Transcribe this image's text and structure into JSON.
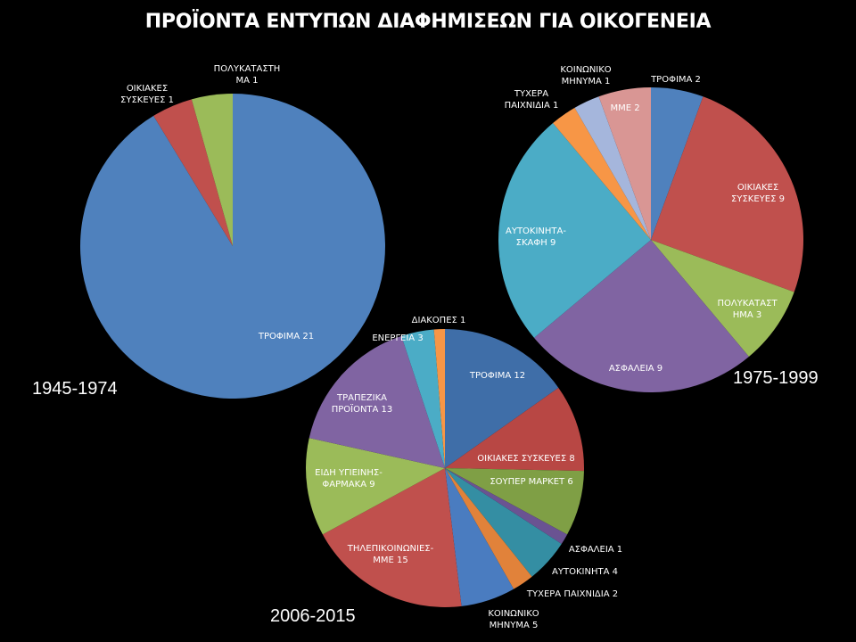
{
  "title": "ΠΡΟΪΟΝΤΑ ΕΝΤΥΠΩΝ ΔΙΑΦΗΜΙΣΕΩΝ ΓΙΑ ΟΙΚΟΓΕΝΕΙΑ",
  "chart_data": [
    {
      "type": "pie",
      "period": "1945-1974",
      "slices": [
        {
          "label": [
            "ΤΡΟΦΙΜΑ 21"
          ],
          "value": 21,
          "color": "#4f81bd"
        },
        {
          "label": [
            "ΟΙΚΙΑΚΕΣ",
            "ΣΥΣΚΕΥΕΣ 1"
          ],
          "value": 1,
          "color": "#c0504d"
        },
        {
          "label": [
            "ΠΟΛΥΚΑΤΑΣΤΗ",
            "ΜΑ 1"
          ],
          "value": 1,
          "color": "#9bbb59"
        }
      ]
    },
    {
      "type": "pie",
      "period": "1975-1999",
      "slices": [
        {
          "label": [
            "ΤΡΟΦΙΜΑ 2"
          ],
          "value": 2,
          "color": "#4f81bd"
        },
        {
          "label": [
            "ΟΙΚΙΑΚΕΣ",
            "ΣΥΣΚΕΥΕΣ 9"
          ],
          "value": 9,
          "color": "#c0504d"
        },
        {
          "label": [
            "ΠΟΛΥΚΑΤΑΣΤ",
            "ΗΜΑ 3"
          ],
          "value": 3,
          "color": "#9bbb59"
        },
        {
          "label": [
            "ΑΣΦΑΛΕΙΑ 9"
          ],
          "value": 9,
          "color": "#8064a2"
        },
        {
          "label": [
            "ΑΥΤΟΚΙΝΗΤΑ-",
            "ΣΚΑΦΗ 9"
          ],
          "value": 9,
          "color": "#4bacc6"
        },
        {
          "label": [
            "ΤΥΧΕΡΑ",
            "ΠΑΙΧΝΙΔΙΑ 1"
          ],
          "value": 1,
          "color": "#f79646"
        },
        {
          "label": [
            "ΚΟΙΝΩΝΙΚΟ",
            "ΜΗΝΥΜΑ 1"
          ],
          "value": 1,
          "color": "#a5b6dc"
        },
        {
          "label": [
            "ΜΜΕ 2"
          ],
          "value": 2,
          "color": "#d99694"
        }
      ]
    },
    {
      "type": "pie",
      "period": "2006-2015",
      "slices": [
        {
          "label": [
            "ΤΡΟΦΙΜΑ 12"
          ],
          "value": 12,
          "color": "#3f6ea8"
        },
        {
          "label": [
            "ΟΙΚΙΑΚΕΣ ΣΥΣΚΕΥΕΣ  8"
          ],
          "value": 8,
          "color": "#b84744"
        },
        {
          "label": [
            "ΣΟΥΠΕΡ ΜΑΡΚΕΤ 6"
          ],
          "value": 6,
          "color": "#7f9f45"
        },
        {
          "label": [
            "ΑΣΦΑΛΕΙΑ 1"
          ],
          "value": 1,
          "color": "#6a5392"
        },
        {
          "label": [
            "ΑΥΤΟΚΙΝΗΤΑ 4"
          ],
          "value": 4,
          "color": "#348ea3"
        },
        {
          "label": [
            "ΤΥΧΕΡΑ ΠΑΙΧΝΙΔΙΑ  2"
          ],
          "value": 2,
          "color": "#e1823a"
        },
        {
          "label": [
            "ΚΟΙΝΩΝΙΚΟ",
            "ΜΗΝΥΜΑ 5"
          ],
          "value": 5,
          "color": "#4a7cc0"
        },
        {
          "label": [
            "ΤΗΛΕΠΙΚΟΙΝΩΝΙΕΣ-",
            "ΜΜΕ 15"
          ],
          "value": 15,
          "color": "#c0504d"
        },
        {
          "label": [
            "ΕΙΔΗ ΥΓΙΕΙΝΗΣ-",
            "ΦΑΡΜΑΚΑ 9"
          ],
          "value": 9,
          "color": "#9bbb59"
        },
        {
          "label": [
            "ΤΡΑΠΕΖΙΚΑ",
            "ΠΡΟΪΟΝΤΑ 13"
          ],
          "value": 13,
          "color": "#8064a2"
        },
        {
          "label": [
            "ΕΝΕΡΓΕΙΑ  3"
          ],
          "value": 3,
          "color": "#4bacc6"
        },
        {
          "label": [
            "ΔΙΑΚΟΠΕΣ 1"
          ],
          "value": 1,
          "color": "#f79646"
        }
      ]
    }
  ]
}
